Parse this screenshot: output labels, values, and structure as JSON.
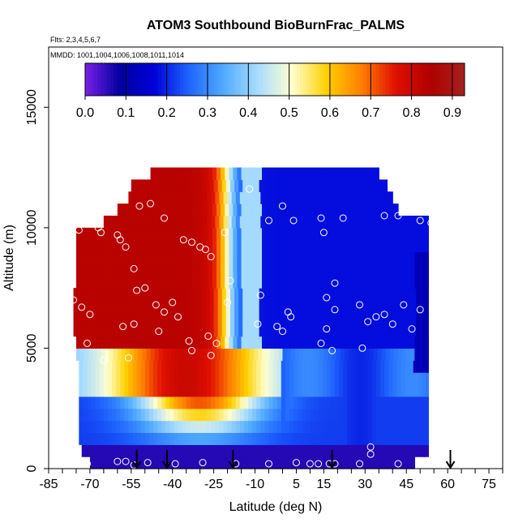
{
  "chart_data": {
    "type": "heatmap",
    "title": "ATOM3 Southbound BioBurnFrac_PALMS",
    "subtitle_flights": "Flts: 2,3,4,5,6,7",
    "subtitle_dates": "MMDD: 1001,1004,1006,1008,1011,1014",
    "xlabel": "Latitude (deg N)",
    "ylabel": "Altitude (m)",
    "xlim": [
      -85,
      80
    ],
    "ylim": [
      0,
      17500
    ],
    "x_tick_labels": [
      "-85",
      "-70",
      "-55",
      "-40",
      "-25",
      "-10",
      "5",
      "15",
      "30",
      "45",
      "60",
      "75"
    ],
    "x_tick_values": [
      -85,
      -70,
      -55,
      -40,
      -25,
      -10,
      5,
      15,
      30,
      45,
      60,
      75
    ],
    "y_tick_labels": [
      "0",
      "5000",
      "10000",
      "15000"
    ],
    "y_tick_values": [
      0,
      5000,
      10000,
      15000
    ],
    "colorbar": {
      "min": 0.0,
      "max": 0.93,
      "tick_labels": [
        "0.0",
        "0.1",
        "0.2",
        "0.3",
        "0.4",
        "0.5",
        "0.6",
        "0.7",
        "0.8",
        "0.9"
      ],
      "tick_values": [
        0,
        0.1,
        0.2,
        0.3,
        0.4,
        0.5,
        0.6,
        0.7,
        0.8,
        0.9
      ],
      "colors": [
        "#7b1fe8",
        "#0000a0",
        "#0000d8",
        "#1e64ff",
        "#50aaff",
        "#a8dcff",
        "#ffffd0",
        "#ffd000",
        "#ff8000",
        "#e01000",
        "#b00000",
        "#a82020"
      ]
    },
    "field": {
      "lat_centers": [
        -75,
        -70,
        -65,
        -60,
        -55,
        -50,
        -45,
        -40,
        -35,
        -30,
        -25,
        -20,
        -15,
        -10,
        -5,
        0,
        5,
        10,
        15,
        20,
        25,
        30,
        35,
        40,
        45,
        50,
        55
      ],
      "alt_centers": [
        250,
        750,
        1250,
        1750,
        2250,
        2750,
        3250,
        3750,
        4250,
        4750,
        5250,
        5750,
        6250,
        6750,
        7250,
        7750,
        8250,
        8750,
        9250,
        9750,
        10250,
        10750,
        11250,
        11750,
        12250
      ],
      "lat_extent_by_alt": [
        [
          -70,
          48
        ],
        [
          -73,
          53
        ],
        [
          -74,
          53
        ],
        [
          -74,
          53
        ],
        [
          -74,
          53
        ],
        [
          -74,
          53
        ],
        [
          -74,
          53
        ],
        [
          -74,
          53
        ],
        [
          -74,
          53
        ],
        [
          -75,
          53
        ],
        [
          -75,
          53
        ],
        [
          -76,
          53
        ],
        [
          -76,
          53
        ],
        [
          -76,
          53
        ],
        [
          -76,
          53
        ],
        [
          -75,
          53
        ],
        [
          -75,
          53
        ],
        [
          -75,
          53
        ],
        [
          -75,
          53
        ],
        [
          -75,
          53
        ],
        [
          -65,
          53
        ],
        [
          -60,
          42
        ],
        [
          -56,
          40
        ],
        [
          -55,
          38
        ],
        [
          -48,
          35
        ]
      ],
      "description_values_note": "fraction values per lat/alt cell"
    },
    "observations": [
      {
        "lat": -74,
        "alt": 9900
      },
      {
        "lat": -67,
        "alt": 10000
      },
      {
        "lat": -66,
        "alt": 9800
      },
      {
        "lat": -60,
        "alt": 9700
      },
      {
        "lat": -57,
        "alt": 9200
      },
      {
        "lat": -59,
        "alt": 9500
      },
      {
        "lat": -52,
        "alt": 10900
      },
      {
        "lat": -48,
        "alt": 11000
      },
      {
        "lat": -43,
        "alt": 10400
      },
      {
        "lat": -36,
        "alt": 9500
      },
      {
        "lat": -33,
        "alt": 9400
      },
      {
        "lat": -30,
        "alt": 9200
      },
      {
        "lat": -28,
        "alt": 9100
      },
      {
        "lat": -26,
        "alt": 8800
      },
      {
        "lat": -54,
        "alt": 8300
      },
      {
        "lat": -53,
        "alt": 7400
      },
      {
        "lat": -50,
        "alt": 7500
      },
      {
        "lat": -46,
        "alt": 6800
      },
      {
        "lat": -40,
        "alt": 6900
      },
      {
        "lat": -43,
        "alt": 6500
      },
      {
        "lat": -38,
        "alt": 6300
      },
      {
        "lat": -54,
        "alt": 6000
      },
      {
        "lat": -58,
        "alt": 5900
      },
      {
        "lat": -45,
        "alt": 5700
      },
      {
        "lat": -34,
        "alt": 5300
      },
      {
        "lat": -27,
        "alt": 5500
      },
      {
        "lat": -24,
        "alt": 5200
      },
      {
        "lat": -33,
        "alt": 4900
      },
      {
        "lat": -26,
        "alt": 4700
      },
      {
        "lat": -71,
        "alt": 5200
      },
      {
        "lat": -70,
        "alt": 6400
      },
      {
        "lat": -73,
        "alt": 6700
      },
      {
        "lat": -76,
        "alt": 7000
      },
      {
        "lat": -65,
        "alt": 4500
      },
      {
        "lat": -56,
        "alt": 4600
      },
      {
        "lat": -21,
        "alt": 9800
      },
      {
        "lat": -19,
        "alt": 7800
      },
      {
        "lat": -20,
        "alt": 6900
      },
      {
        "lat": -12,
        "alt": 11600
      },
      {
        "lat": 0,
        "alt": 10900
      },
      {
        "lat": 4,
        "alt": 10300
      },
      {
        "lat": 14,
        "alt": 10400
      },
      {
        "lat": 15,
        "alt": 9800
      },
      {
        "lat": -5,
        "alt": 10300
      },
      {
        "lat": 22,
        "alt": 10400
      },
      {
        "lat": 37,
        "alt": 10500
      },
      {
        "lat": 42,
        "alt": 10500
      },
      {
        "lat": 50,
        "alt": 10300
      },
      {
        "lat": 54,
        "alt": 10200
      },
      {
        "lat": 19,
        "alt": 7700
      },
      {
        "lat": -8,
        "alt": 7200
      },
      {
        "lat": -9,
        "alt": 6000
      },
      {
        "lat": 2,
        "alt": 6500
      },
      {
        "lat": 3,
        "alt": 6300
      },
      {
        "lat": 0,
        "alt": 5700
      },
      {
        "lat": -2,
        "alt": 5900
      },
      {
        "lat": 16,
        "alt": 7100
      },
      {
        "lat": 19,
        "alt": 6600
      },
      {
        "lat": 16,
        "alt": 5800
      },
      {
        "lat": 18,
        "alt": 4900
      },
      {
        "lat": 14,
        "alt": 5200
      },
      {
        "lat": 28,
        "alt": 6800
      },
      {
        "lat": 31,
        "alt": 6100
      },
      {
        "lat": 29,
        "alt": 5000
      },
      {
        "lat": 34,
        "alt": 6300
      },
      {
        "lat": 37,
        "alt": 6400
      },
      {
        "lat": 40,
        "alt": 6000
      },
      {
        "lat": 44,
        "alt": 6800
      },
      {
        "lat": 47,
        "alt": 5800
      },
      {
        "lat": 50,
        "alt": 6600
      },
      {
        "lat": 55,
        "alt": 5400
      },
      {
        "lat": -71,
        "alt": 200
      },
      {
        "lat": -60,
        "alt": 300
      },
      {
        "lat": -57,
        "alt": 300
      },
      {
        "lat": -54,
        "alt": 150
      },
      {
        "lat": -49,
        "alt": 250
      },
      {
        "lat": -39,
        "alt": 200
      },
      {
        "lat": -29,
        "alt": 250
      },
      {
        "lat": -17,
        "alt": 200
      },
      {
        "lat": -5,
        "alt": 200
      },
      {
        "lat": 5,
        "alt": 250
      },
      {
        "lat": 10,
        "alt": 200
      },
      {
        "lat": 13,
        "alt": 200
      },
      {
        "lat": 17,
        "alt": 200
      },
      {
        "lat": 19,
        "alt": 200
      },
      {
        "lat": 28,
        "alt": 200
      },
      {
        "lat": 32,
        "alt": 900
      },
      {
        "lat": 32,
        "alt": 600
      },
      {
        "lat": 42,
        "alt": 200
      }
    ],
    "arrows_lat": [
      -53,
      -42,
      -18,
      18,
      61
    ],
    "grid": false
  }
}
